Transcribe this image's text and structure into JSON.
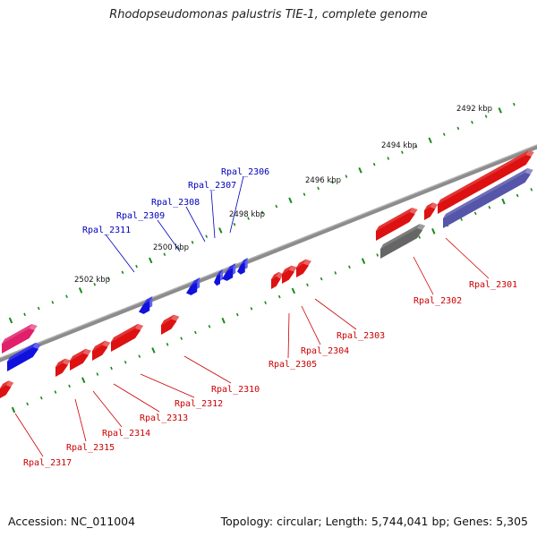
{
  "title": "Rhodopseudomonas palustris TIE-1, complete genome",
  "accession": "Accession: NC_011004",
  "topology": "Topology: circular; Length: 5,744,041 bp; Genes: 5,305",
  "colors": {
    "backbone": "#7a7a7a",
    "tick": "#1a8a1a",
    "forward_gene": "#dd1111",
    "reverse_gene": "#1111dd",
    "pseudo_gene": "#666666",
    "rna_gene": "#e0206a",
    "label_forward": "#cc0000",
    "label_reverse": "#0000bb"
  },
  "scale_labels": [
    "2492 kbp",
    "2494 kbp",
    "2496 kbp",
    "2498 kbp",
    "2500 kbp",
    "2502 kbp"
  ],
  "forward_labels": [
    "Rpal_2301",
    "Rpal_2302",
    "Rpal_2303",
    "Rpal_2304",
    "Rpal_2305",
    "Rpal_2310",
    "Rpal_2312",
    "Rpal_2313",
    "Rpal_2314",
    "Rpal_2315",
    "Rpal_2317"
  ],
  "reverse_labels": [
    "Rpal_2306",
    "Rpal_2307",
    "Rpal_2308",
    "Rpal_2309",
    "Rpal_2311"
  ]
}
